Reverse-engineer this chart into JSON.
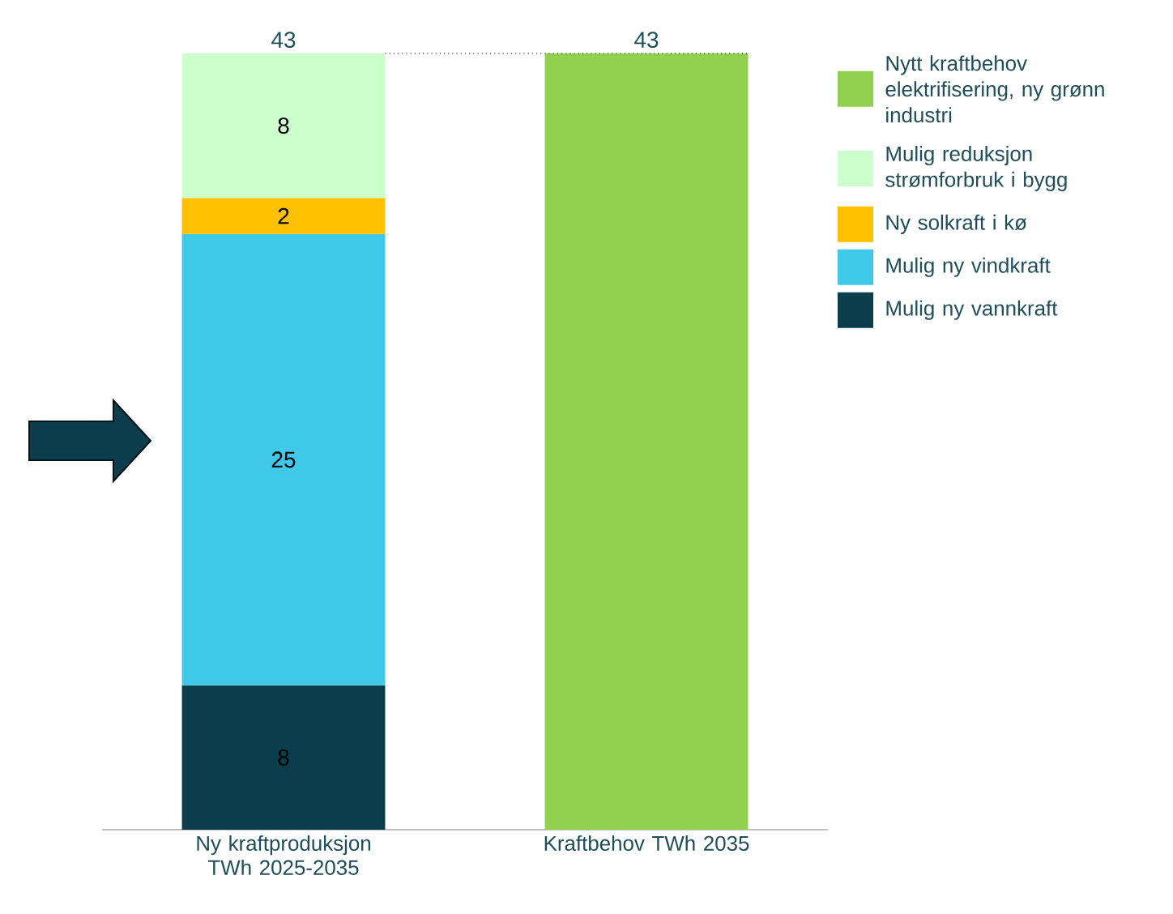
{
  "chart_data": {
    "type": "bar",
    "stacked": true,
    "categories": [
      "Ny kraftproduksjon TWh 2025-2035",
      "Kraftbehov TWh 2035"
    ],
    "series": [
      {
        "name": "Mulig ny vannkraft",
        "color": "#0b3d4c",
        "values": [
          8,
          null
        ],
        "value_labels": [
          "8",
          null
        ]
      },
      {
        "name": "Mulig ny vindkraft",
        "color": "#40c8e8",
        "values": [
          25,
          null
        ],
        "value_labels": [
          "25",
          null
        ]
      },
      {
        "name": "Ny solkraft i kø",
        "color": "#ffc000",
        "values": [
          2,
          null
        ],
        "value_labels": [
          "2",
          null
        ]
      },
      {
        "name": "Mulig reduksjon strømforbruk i bygg",
        "color": "#ccffcc",
        "values": [
          8,
          null
        ],
        "value_labels": [
          "8",
          null
        ]
      },
      {
        "name": "Nytt kraftbehov elektrifisering, ny grønn industri",
        "color": "#92d050",
        "values": [
          null,
          43
        ],
        "value_labels": [
          null,
          null
        ]
      }
    ],
    "totals": [
      "43",
      "43"
    ],
    "ylim": [
      0,
      43
    ],
    "tick_labels": "x",
    "legend": "right",
    "ref_lines": [
      {
        "axis": "y",
        "value": 43,
        "line_style": "dotted"
      }
    ]
  }
}
